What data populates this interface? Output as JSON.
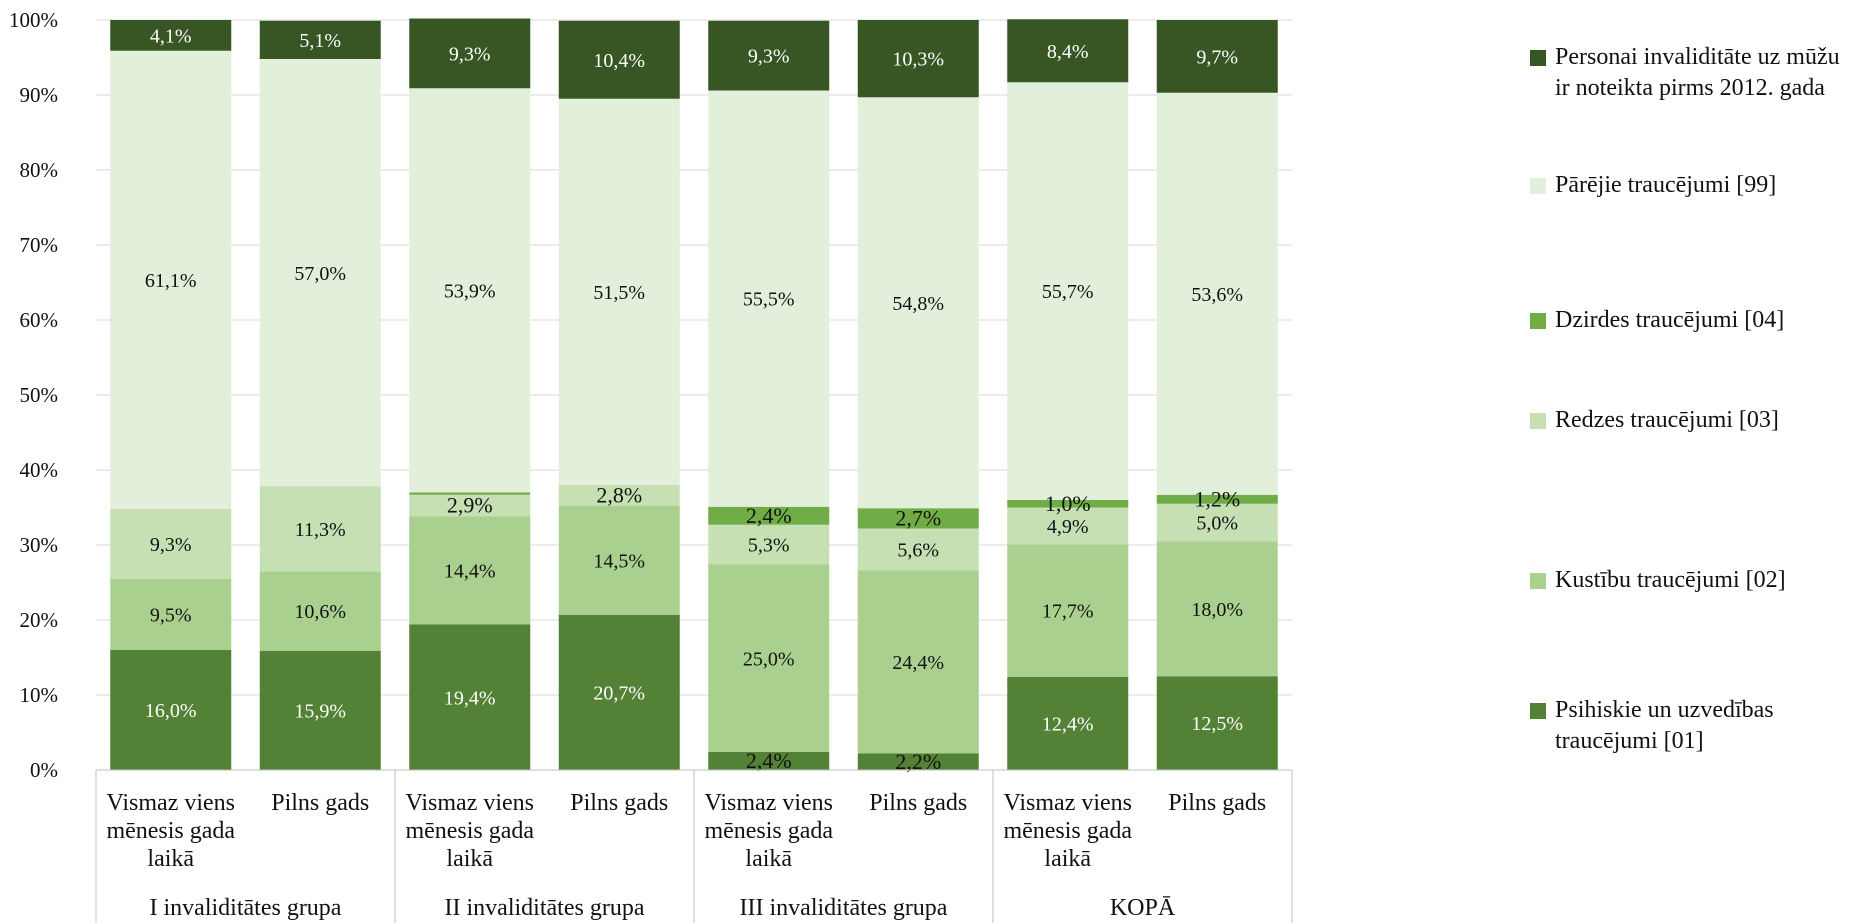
{
  "chart_data": {
    "type": "bar",
    "stacked": "percent",
    "groups": [
      {
        "label": "I invaliditātes grupa",
        "categories": [
          "Vismaz viens\nmēnesis gada\nlaikā",
          "Pilns gads"
        ]
      },
      {
        "label": "II invaliditātes grupa",
        "categories": [
          "Vismaz viens\nmēnesis gada\nlaikā",
          "Pilns gads"
        ]
      },
      {
        "label": "III invaliditātes grupa",
        "categories": [
          "Vismaz viens\nmēnesis gada\nlaikā",
          "Pilns gads"
        ]
      },
      {
        "label": "KOPĀ",
        "categories": [
          "Vismaz viens\nmēnesis gada\nlaikā",
          "Pilns gads"
        ]
      }
    ],
    "series": [
      {
        "name": "Psihiskie un uzvedības traucējumi [01]",
        "color": "#538135",
        "label_color": "#ffffff",
        "values": [
          16.0,
          15.9,
          19.4,
          20.7,
          2.4,
          2.2,
          12.4,
          12.5
        ],
        "labels": [
          "16,0%",
          "15,9%",
          "19,4%",
          "20,7%",
          "2,4%",
          "2,2%",
          "12,4%",
          "12,5%"
        ]
      },
      {
        "name": "Kustību traucējumi [02]",
        "color": "#a9d08e",
        "label_color": "#111111",
        "values": [
          9.5,
          10.6,
          14.4,
          14.5,
          25.0,
          24.4,
          17.7,
          18.0
        ],
        "labels": [
          "9,5%",
          "10,6%",
          "14,4%",
          "14,5%",
          "25,0%",
          "24,4%",
          "17,7%",
          "18,0%"
        ]
      },
      {
        "name": "Redzes traucējumi [03]",
        "color": "#c6e0b4",
        "label_color": "#111111",
        "values": [
          9.3,
          11.3,
          2.9,
          2.8,
          5.3,
          5.6,
          4.9,
          5.0
        ],
        "labels": [
          "9,3%",
          "11,3%",
          "2,9%",
          "2,8%",
          "5,3%",
          "5,6%",
          "4,9%",
          "5,0%"
        ]
      },
      {
        "name": "Dzirdes traucējumi [04]",
        "color": "#70ad47",
        "label_color": "#111111",
        "values": [
          0.0,
          0.0,
          0.3,
          0.0,
          2.4,
          2.7,
          1.0,
          1.2
        ],
        "labels": [
          "",
          "",
          "",
          "",
          "2,4%",
          "2,7%",
          "1,0%",
          "1,2%"
        ]
      },
      {
        "name": "Pārējie traucējumi [99]",
        "color": "#e2efda",
        "label_color": "#111111",
        "values": [
          61.1,
          57.0,
          53.9,
          51.5,
          55.5,
          54.8,
          55.7,
          53.6
        ],
        "labels": [
          "61,1%",
          "57,0%",
          "53,9%",
          "51,5%",
          "55,5%",
          "54,8%",
          "55,7%",
          "53,6%"
        ]
      },
      {
        "name": "Personai invaliditāte uz mūžu ir noteikta pirms 2012. gada",
        "color": "#375623",
        "label_color": "#ffffff",
        "values": [
          4.1,
          5.1,
          9.3,
          10.4,
          9.3,
          10.3,
          8.4,
          9.7
        ],
        "labels": [
          "4,1%",
          "5,1%",
          "9,3%",
          "10,4%",
          "9,3%",
          "10,3%",
          "8,4%",
          "9,7%"
        ]
      }
    ],
    "ylim": [
      0,
      100
    ],
    "yticks": [
      "0%",
      "10%",
      "20%",
      "30%",
      "40%",
      "50%",
      "60%",
      "70%",
      "80%",
      "90%",
      "100%"
    ],
    "grid": true,
    "legend_position": "right",
    "legend_order": [
      "Personai invaliditāte uz mūžu ir noteikta pirms 2012. gada",
      "Pārējie traucējumi [99]",
      "Dzirdes traucējumi [04]",
      "Redzes traucējumi [03]",
      "Kustību traucējumi [02]",
      "Psihiskie un uzvedības traucējumi [01]"
    ]
  }
}
